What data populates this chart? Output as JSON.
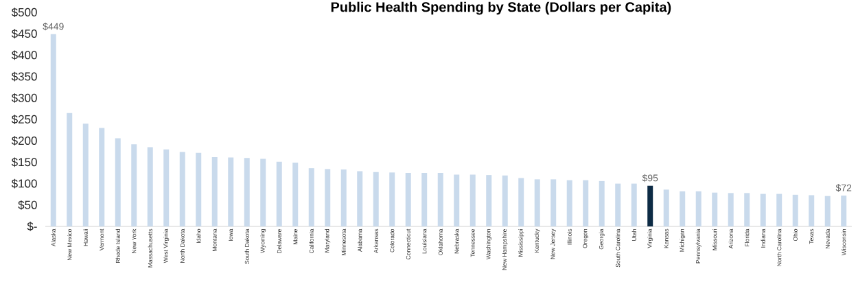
{
  "chart_data": {
    "type": "bar",
    "title": "Public Health Spending by State (Dollars per Capita)",
    "categories": [
      "Alaska",
      "New Mexico",
      "Hawaii",
      "Vermont",
      "Rhode Island",
      "New York",
      "Massachusetts",
      "West Virginia",
      "North Dakota",
      "Idaho",
      "Montana",
      "Iowa",
      "South Dakota",
      "Wyoming",
      "Delaware",
      "Maine",
      "California",
      "Maryland",
      "Minnesota",
      "Alabama",
      "Arkansas",
      "Colorado",
      "Connecticut",
      "Louisiana",
      "Oklahoma",
      "Nebraska",
      "Tennessee",
      "Washington",
      "New Hampshire",
      "Mississippi",
      "Kentucky",
      "New Jersey",
      "Illinois",
      "Oregon",
      "Georgia",
      "South Carolina",
      "Utah",
      "Virginia",
      "Kansas",
      "Michigan",
      "Pennsylvania",
      "Missouri",
      "Arizona",
      "Florida",
      "Indiana",
      "North Carolina",
      "Ohio",
      "Texas",
      "Nevada",
      "Wisconsin"
    ],
    "values": [
      449,
      265,
      240,
      230,
      206,
      192,
      185,
      180,
      174,
      172,
      162,
      161,
      160,
      158,
      151,
      149,
      136,
      134,
      133,
      129,
      127,
      126,
      125,
      125,
      125,
      121,
      121,
      120,
      119,
      113,
      110,
      110,
      108,
      108,
      106,
      100,
      100,
      95,
      86,
      82,
      82,
      79,
      78,
      78,
      76,
      76,
      74,
      73,
      71,
      72
    ],
    "colors": [
      "#c9daec",
      "#c9daec",
      "#c9daec",
      "#c9daec",
      "#c9daec",
      "#c9daec",
      "#c9daec",
      "#c9daec",
      "#c9daec",
      "#c9daec",
      "#c9daec",
      "#c9daec",
      "#c9daec",
      "#c9daec",
      "#c9daec",
      "#c9daec",
      "#c9daec",
      "#c9daec",
      "#c9daec",
      "#c9daec",
      "#c9daec",
      "#c9daec",
      "#c9daec",
      "#c9daec",
      "#c9daec",
      "#c9daec",
      "#c9daec",
      "#c9daec",
      "#c9daec",
      "#c9daec",
      "#c9daec",
      "#c9daec",
      "#c9daec",
      "#c9daec",
      "#c9daec",
      "#c9daec",
      "#c9daec",
      "#0d2b45",
      "#c9daec",
      "#c9daec",
      "#c9daec",
      "#c9daec",
      "#c9daec",
      "#c9daec",
      "#c9daec",
      "#c9daec",
      "#c9daec",
      "#c9daec",
      "#c9daec",
      "#c9daec"
    ],
    "value_labels": [
      "$449",
      null,
      null,
      null,
      null,
      null,
      null,
      null,
      null,
      null,
      null,
      null,
      null,
      null,
      null,
      null,
      null,
      null,
      null,
      null,
      null,
      null,
      null,
      null,
      null,
      null,
      null,
      null,
      null,
      null,
      null,
      null,
      null,
      null,
      null,
      null,
      null,
      "$95",
      null,
      null,
      null,
      null,
      null,
      null,
      null,
      null,
      null,
      null,
      null,
      "$72"
    ],
    "ylim": [
      0,
      500
    ],
    "yticks": [
      {
        "value": 0,
        "label": "$-"
      },
      {
        "value": 50,
        "label": "$50"
      },
      {
        "value": 100,
        "label": "$100"
      },
      {
        "value": 150,
        "label": "$150"
      },
      {
        "value": 200,
        "label": "$200"
      },
      {
        "value": 250,
        "label": "$250"
      },
      {
        "value": 300,
        "label": "$300"
      },
      {
        "value": 350,
        "label": "$350"
      },
      {
        "value": 400,
        "label": "$400"
      },
      {
        "value": 450,
        "label": "$450"
      },
      {
        "value": 500,
        "label": "$500"
      }
    ],
    "grid": false
  }
}
